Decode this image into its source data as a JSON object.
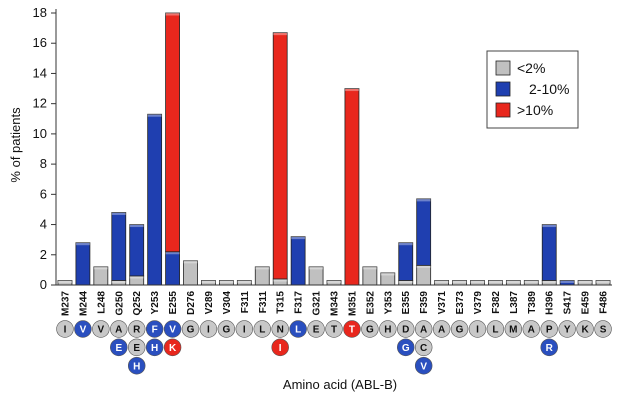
{
  "chart_data": {
    "type": "bar",
    "stacked": true,
    "xlabel": "Amino acid (ABL-B)",
    "ylabel": "% of patients",
    "ylim": [
      0,
      18
    ],
    "yticks": [
      0,
      2,
      4,
      6,
      8,
      10,
      12,
      14,
      16,
      18
    ],
    "grid": "none",
    "legend_position": "top-right",
    "categories": [
      "M237",
      "M244",
      "L248",
      "G250",
      "Q252",
      "Y253",
      "E255",
      "D276",
      "V289",
      "V304",
      "F311",
      "F311",
      "T315",
      "F317",
      "G321",
      "M343",
      "M351",
      "E352",
      "Y353",
      "E355",
      "F359",
      "V371",
      "E373",
      "V379",
      "F382",
      "L387",
      "T389",
      "H396",
      "S417",
      "E459",
      "F486"
    ],
    "series": [
      {
        "name": "<2%",
        "color": "#c0c0c0",
        "values": [
          0.3,
          0,
          1.2,
          0.3,
          0.6,
          0,
          0,
          1.6,
          0.3,
          0.3,
          0.3,
          1.2,
          0.4,
          0,
          1.2,
          0.3,
          0,
          1.2,
          0.8,
          0.3,
          1.3,
          0.3,
          0.3,
          0.3,
          0.3,
          0.3,
          0.3,
          0.3,
          0,
          0.3,
          0.3
        ]
      },
      {
        "name": "2-10%",
        "color": "#1f3fb0",
        "values": [
          0,
          2.8,
          0,
          4.5,
          3.4,
          11.3,
          2.2,
          0,
          0,
          0,
          0,
          0,
          0,
          3.2,
          0,
          0,
          0,
          0,
          0,
          2.5,
          4.4,
          0,
          0,
          0,
          0,
          0,
          0,
          3.7,
          0.3,
          0,
          0
        ]
      },
      {
        "name": ">10%",
        "color": "#e8271d",
        "values": [
          0,
          0,
          0,
          0,
          0,
          0,
          15.8,
          0,
          0,
          0,
          0,
          0,
          16.3,
          0,
          0,
          0,
          13.0,
          0,
          0,
          0,
          0,
          0,
          0,
          0,
          0,
          0,
          0,
          0,
          0,
          0,
          0
        ]
      }
    ],
    "wildtype_residues": [
      "I",
      "V",
      "V",
      "A",
      "R",
      "F",
      "V",
      "G",
      "I",
      "G",
      "I",
      "L",
      "N",
      "L",
      "E",
      "T",
      "T",
      "G",
      "H",
      "D",
      "A",
      "A",
      "G",
      "I",
      "L",
      "M",
      "A",
      "P",
      "Y",
      "K",
      "S"
    ],
    "wildtype_colors": [
      "#c8c8c8",
      "#2a4fbf",
      "#c8c8c8",
      "#c8c8c8",
      "#c8c8c8",
      "#2a4fbf",
      "#2a4fbf",
      "#c8c8c8",
      "#c8c8c8",
      "#c8c8c8",
      "#c8c8c8",
      "#c8c8c8",
      "#c8c8c8",
      "#2a4fbf",
      "#c8c8c8",
      "#c8c8c8",
      "#e8271d",
      "#c8c8c8",
      "#c8c8c8",
      "#c8c8c8",
      "#c8c8c8",
      "#c8c8c8",
      "#c8c8c8",
      "#c8c8c8",
      "#c8c8c8",
      "#c8c8c8",
      "#c8c8c8",
      "#c8c8c8",
      "#c8c8c8",
      "#c8c8c8",
      "#c8c8c8"
    ],
    "substitutions": [
      {
        "index": 3,
        "residue": "E",
        "color": "#2a4fbf"
      },
      {
        "index": 4,
        "residue": "E",
        "color": "#c8c8c8"
      },
      {
        "index": 4,
        "residue": "H",
        "color": "#2a4fbf"
      },
      {
        "index": 5,
        "residue": "H",
        "color": "#2a4fbf"
      },
      {
        "index": 6,
        "residue": "K",
        "color": "#e8271d"
      },
      {
        "index": 12,
        "residue": "I",
        "color": "#e8271d"
      },
      {
        "index": 19,
        "residue": "G",
        "color": "#2a4fbf"
      },
      {
        "index": 20,
        "residue": "C",
        "color": "#c8c8c8"
      },
      {
        "index": 20,
        "residue": "V",
        "color": "#2a4fbf"
      },
      {
        "index": 27,
        "residue": "R",
        "color": "#2a4fbf"
      }
    ]
  }
}
